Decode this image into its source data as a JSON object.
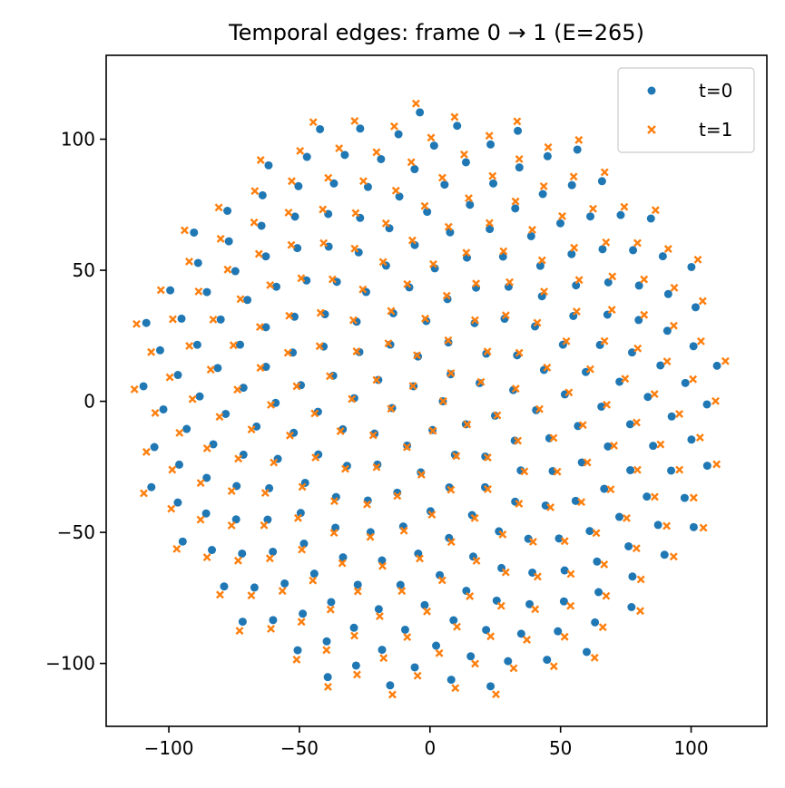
{
  "chart_data": {
    "type": "scatter",
    "title": "Temporal edges: frame 0 → 1  (E=265)",
    "xlabel": "",
    "ylabel": "",
    "xlim": [
      -124,
      129
    ],
    "ylim": [
      -124,
      132
    ],
    "x_ticks": [
      -100,
      -50,
      0,
      50,
      100
    ],
    "y_ticks": [
      -100,
      -50,
      0,
      50,
      100
    ],
    "x_tick_labels": [
      "−100",
      "−50",
      "0",
      "50",
      "100"
    ],
    "y_tick_labels": [
      "−100",
      "−50",
      "0",
      "50",
      "100"
    ],
    "grid": false,
    "legend_position": "top-right",
    "point_generation": {
      "pattern": "fermat-spiral",
      "count": 265,
      "max_radius": 113,
      "golden_angle_deg": 137.508,
      "frame_shift_radius": 3.5
    },
    "series": [
      {
        "name": "t=0",
        "marker": "circle",
        "color": "#1f77b4"
      },
      {
        "name": "t=1",
        "marker": "x",
        "color": "#ff7f0e"
      }
    ]
  }
}
